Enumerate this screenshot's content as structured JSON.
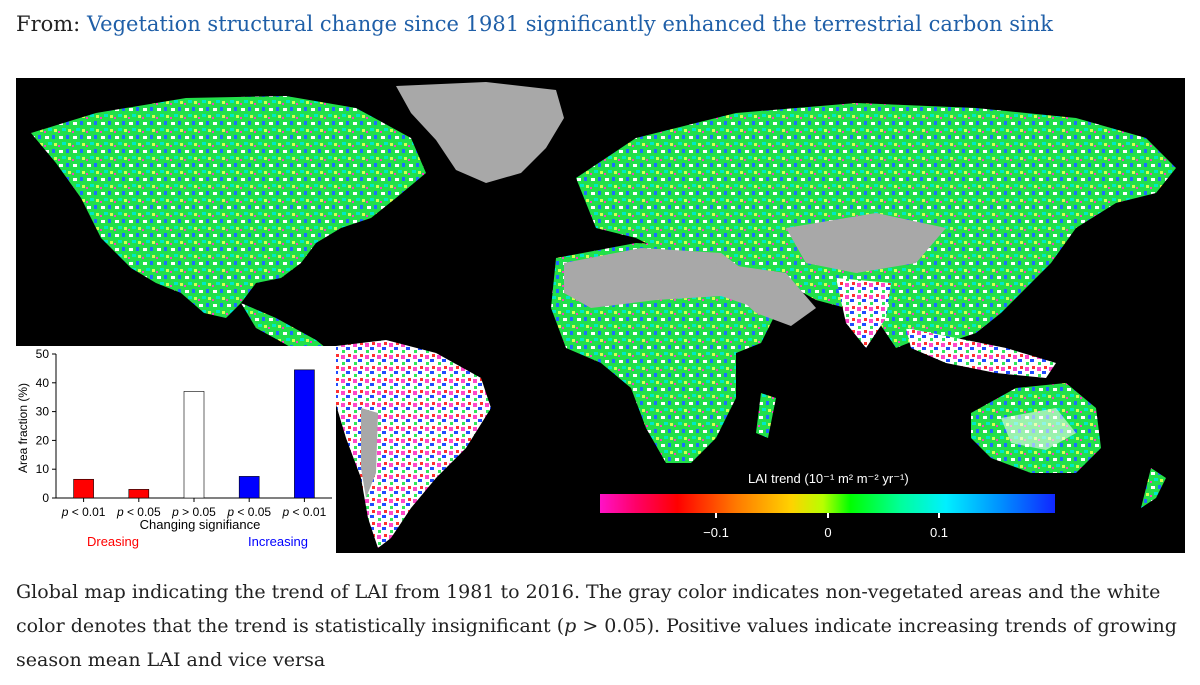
{
  "header": {
    "prefix": "From:",
    "article_link": "Vegetation structural change since 1981 significantly enhanced the terrestrial carbon sink"
  },
  "colorbar": {
    "title": "LAI trend (10⁻¹ m² m⁻² yr⁻¹)",
    "tick_labels": [
      "−0.1",
      "0",
      "0.1"
    ]
  },
  "chart_data": {
    "type": "bar",
    "ylabel": "Area fraction (%)",
    "xlabel": "Changing signifiance",
    "ylim": [
      0,
      50
    ],
    "yticks": [
      0,
      10,
      20,
      30,
      40,
      50
    ],
    "categories": [
      "p < 0.01",
      "p < 0.05",
      "p > 0.05",
      "p < 0.05",
      "p < 0.01"
    ],
    "values": [
      6.5,
      3,
      37,
      7.5,
      44.5
    ],
    "bar_colors": [
      "#ff0000",
      "#ff0000",
      "#ffffff",
      "#0000ff",
      "#0000ff"
    ],
    "group_labels": [
      {
        "text": "Dreasing",
        "color": "#ff0000"
      },
      {
        "text": "Increasing",
        "color": "#0000ff"
      }
    ]
  },
  "caption": {
    "before_p": "Global map indicating the trend of LAI from 1981 to 2016. The gray color indicates non-vegetated areas and the white color denotes that the trend is statistically insignificant (",
    "p_symbol": "p",
    "after_p": " > 0.05). Positive values indicate increasing trends of growing season mean LAI and vice versa"
  },
  "colors": {
    "link": "#1f5fa8",
    "map_background": "#000000",
    "non_vegetated": "#a8a8a8"
  }
}
